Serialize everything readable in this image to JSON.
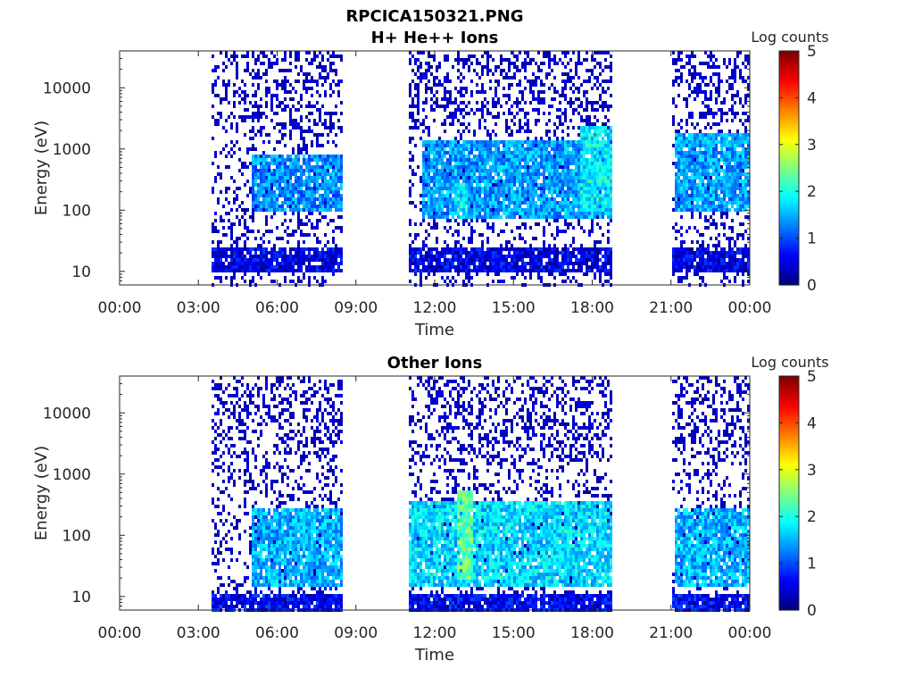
{
  "figure": {
    "title_line1": "RPCICA150321.PNG",
    "title_line2": "H+ He++ Ions"
  },
  "colors": {
    "colormap": "jet",
    "axes": "#262626",
    "background": "#ffffff"
  },
  "chart_data": [
    {
      "type": "heatmap",
      "title": "H+ He++ Ions",
      "xlabel": "Time",
      "ylabel": "Energy (eV)",
      "xticks": [
        "00:00",
        "03:00",
        "06:00",
        "09:00",
        "12:00",
        "15:00",
        "18:00",
        "21:00",
        "00:00"
      ],
      "xlim_hours": [
        0,
        24
      ],
      "yscale": "log",
      "ylim": [
        6,
        40000
      ],
      "yticks": [
        10,
        100,
        1000,
        10000
      ],
      "yticklabels": [
        "10",
        "100",
        "1000",
        "10000"
      ],
      "colorbar": {
        "label": "Log counts",
        "range": [
          0,
          5
        ],
        "ticks": [
          "0",
          "1",
          "2",
          "3",
          "4",
          "5"
        ]
      },
      "data_intervals_hours": [
        [
          3.5,
          8.45
        ],
        [
          11.0,
          18.75
        ],
        [
          21.05,
          23.95
        ]
      ],
      "features": [
        {
          "t": [
            5.0,
            8.45
          ],
          "energy_eV": [
            100,
            900
          ],
          "log_counts": 1.3
        },
        {
          "t": [
            11.5,
            18.75
          ],
          "energy_eV": [
            80,
            1500
          ],
          "log_counts": 1.4
        },
        {
          "t": [
            12.8,
            13.2
          ],
          "energy_eV": [
            100,
            300
          ],
          "log_counts": 1.9
        },
        {
          "t": [
            17.5,
            18.7
          ],
          "energy_eV": [
            100,
            2500
          ],
          "log_counts": 1.8
        },
        {
          "t": [
            21.05,
            23.95
          ],
          "energy_eV": [
            100,
            2000
          ],
          "log_counts": 1.4
        },
        {
          "t": [
            3.5,
            23.95
          ],
          "energy_eV": [
            10,
            28
          ],
          "log_counts": 0.5
        }
      ]
    },
    {
      "type": "heatmap",
      "title": "Other Ions",
      "xlabel": "Time",
      "ylabel": "Energy (eV)",
      "xticks": [
        "00:00",
        "03:00",
        "06:00",
        "09:00",
        "12:00",
        "15:00",
        "18:00",
        "21:00",
        "00:00"
      ],
      "xlim_hours": [
        0,
        24
      ],
      "yscale": "log",
      "ylim": [
        6,
        40000
      ],
      "yticks": [
        10,
        100,
        1000,
        10000
      ],
      "yticklabels": [
        "10",
        "100",
        "1000",
        "10000"
      ],
      "colorbar": {
        "label": "Log counts",
        "range": [
          0,
          5
        ],
        "ticks": [
          "0",
          "1",
          "2",
          "3",
          "4",
          "5"
        ]
      },
      "data_intervals_hours": [
        [
          3.5,
          8.45
        ],
        [
          11.0,
          18.75
        ],
        [
          21.05,
          23.95
        ]
      ],
      "features": [
        {
          "t": [
            5.0,
            8.45
          ],
          "energy_eV": [
            15,
            300
          ],
          "log_counts": 1.5
        },
        {
          "t": [
            11.0,
            18.75
          ],
          "energy_eV": [
            15,
            400
          ],
          "log_counts": 1.7
        },
        {
          "t": [
            12.8,
            13.4
          ],
          "energy_eV": [
            20,
            600
          ],
          "log_counts": 2.3
        },
        {
          "t": [
            21.05,
            23.95
          ],
          "energy_eV": [
            15,
            300
          ],
          "log_counts": 1.5
        },
        {
          "t": [
            3.5,
            23.95
          ],
          "energy_eV": [
            6,
            12
          ],
          "log_counts": 0.6
        }
      ]
    }
  ]
}
